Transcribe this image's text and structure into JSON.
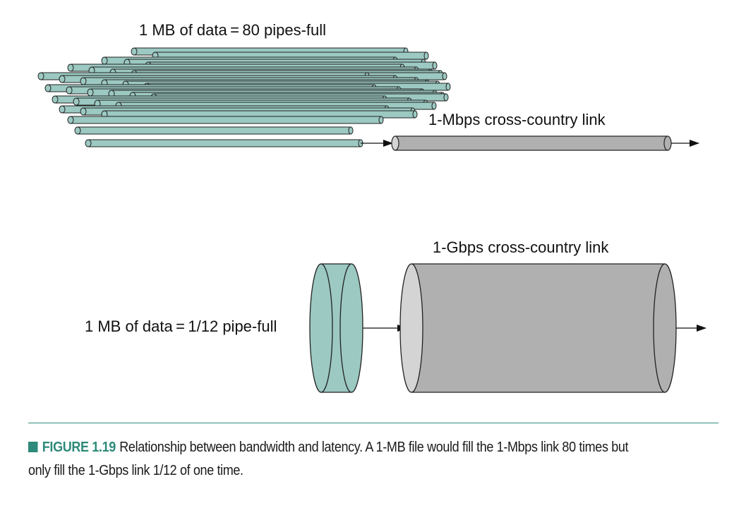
{
  "diagram": {
    "top_label": "1 MB of data = 80 pipes-full",
    "mbps_link_label": "1-Mbps cross-country link",
    "gbps_link_label": "1-Gbps cross-country link",
    "bottom_label": "1 MB of data = 1/12 pipe-full",
    "pipe_count": 80,
    "pipe_fraction": "1/12"
  },
  "caption": {
    "figure_label": "FIGURE 1.19",
    "text": "Relationship between bandwidth and latency. A 1-MB file would fill the 1-Mbps link 80 times but only fill the 1-Gbps link 1/12 of one time."
  },
  "colors": {
    "teal_pipe": "#9cc9c2",
    "gray_pipe": "#b0b0b0",
    "gray_pipe_end": "#d4d4d4",
    "outline": "#222222",
    "accent": "#2e8a7a"
  }
}
